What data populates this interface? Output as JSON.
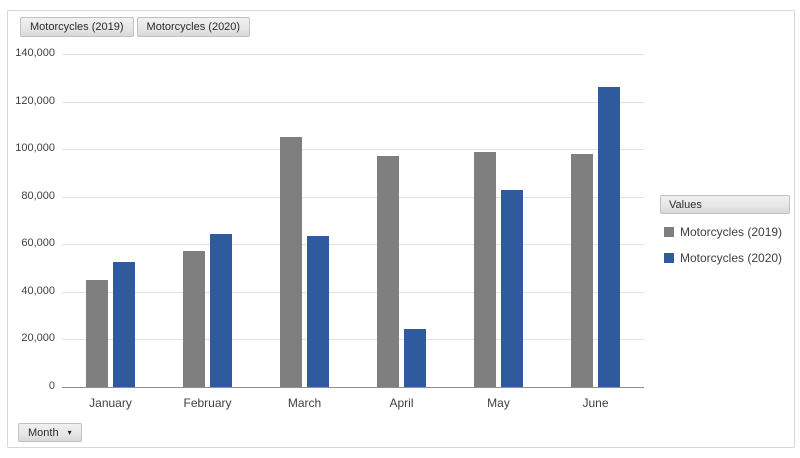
{
  "field_buttons": [
    {
      "label": "Motorcycles (2019)"
    },
    {
      "label": "Motorcycles (2020)"
    }
  ],
  "legend": {
    "header": "Values",
    "items": [
      {
        "label": "Motorcycles (2019)",
        "color": "#7f7f7f"
      },
      {
        "label": "Motorcycles (2020)",
        "color": "#2f5a9e"
      }
    ]
  },
  "axis_button": {
    "label": "Month",
    "dropdown_icon": "▾"
  },
  "chart_data": {
    "type": "bar",
    "title": "",
    "xlabel": "",
    "ylabel": "",
    "categories": [
      "January",
      "February",
      "March",
      "April",
      "May",
      "June"
    ],
    "series": [
      {
        "name": "Motorcycles (2019)",
        "color": "#7f7f7f",
        "values": [
          45000,
          57000,
          105000,
          97000,
          99000,
          98000
        ]
      },
      {
        "name": "Motorcycles (2020)",
        "color": "#2f5a9e",
        "values": [
          52500,
          64500,
          63500,
          24500,
          83000,
          126000
        ]
      }
    ],
    "ylim": [
      0,
      140000
    ],
    "ytick_step": 20000,
    "grid": true,
    "legend_position": "right"
  }
}
